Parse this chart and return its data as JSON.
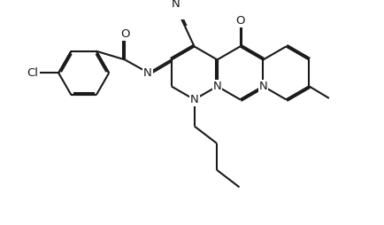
{
  "bg_color": "#ffffff",
  "line_color": "#1a1a1a",
  "line_width": 1.5,
  "font_size": 9.5,
  "figsize": [
    4.34,
    2.54
  ],
  "dpi": 100,
  "xlim": [
    -0.5,
    11.0
  ],
  "ylim": [
    -2.5,
    5.2
  ]
}
